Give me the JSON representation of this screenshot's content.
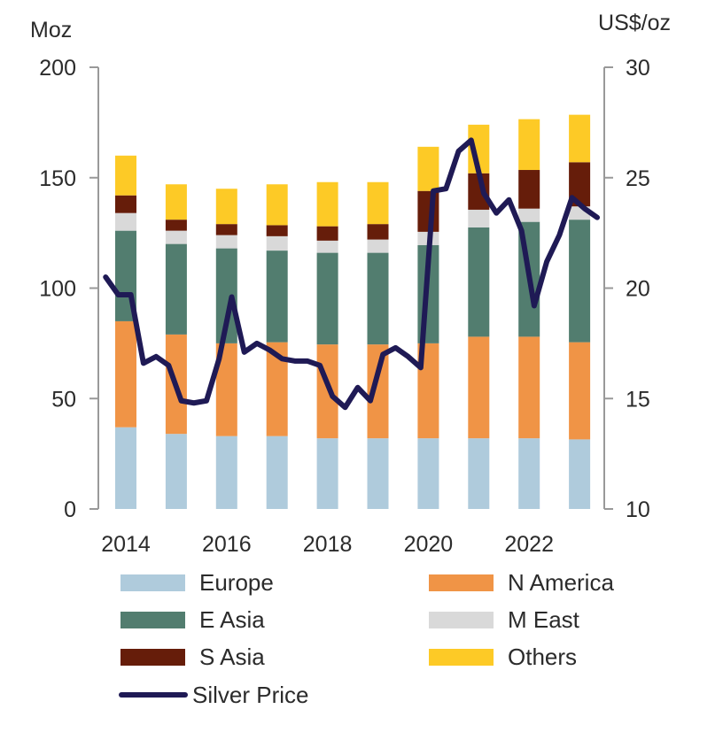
{
  "chart_data": {
    "type": "bar",
    "stacked": true,
    "categories": [
      2014,
      2015,
      2016,
      2017,
      2018,
      2019,
      2020,
      2021,
      2022,
      2023
    ],
    "x_tick_labels": [
      "2014",
      "2016",
      "2018",
      "2020",
      "2022"
    ],
    "y_left": {
      "unit": "Moz",
      "range": [
        0,
        200
      ],
      "ticks": [
        0,
        50,
        100,
        150,
        200
      ]
    },
    "y_right": {
      "unit": "US$/oz",
      "range": [
        10,
        30
      ],
      "ticks": [
        10,
        15,
        20,
        25,
        30
      ]
    },
    "grid": false,
    "legend_position": "bottom",
    "series": [
      {
        "name": "Europe",
        "color": "#afcbdc",
        "values": [
          37,
          34,
          33,
          33,
          32,
          32,
          32,
          32,
          32,
          31.5
        ]
      },
      {
        "name": "N America",
        "color": "#f09446",
        "values": [
          48,
          45,
          42,
          42.5,
          42.5,
          42.5,
          43,
          46,
          46,
          44
        ]
      },
      {
        "name": "E Asia",
        "color": "#527d6f",
        "values": [
          41,
          41,
          43,
          41.5,
          41.5,
          41.5,
          44.5,
          49.5,
          52,
          55.5
        ]
      },
      {
        "name": "M East",
        "color": "#d9d9d9",
        "values": [
          8,
          6,
          6,
          6.5,
          5.5,
          6,
          6,
          8,
          6,
          6
        ]
      },
      {
        "name": "S Asia",
        "color": "#661d0a",
        "values": [
          8,
          5,
          5,
          5,
          6.5,
          7,
          18.5,
          16.5,
          17.5,
          20
        ]
      },
      {
        "name": "Others",
        "color": "#fdca26",
        "values": [
          18,
          16,
          16,
          18.5,
          20,
          19,
          20,
          22,
          23,
          21.5
        ]
      }
    ],
    "line_series": {
      "name": "Silver Price",
      "axis": "right",
      "color": "#1f1a55",
      "x": [
        "2014 Q1",
        "2014 Q2",
        "2014 Q3",
        "2014 Q4",
        "2015 Q1",
        "2015 Q2",
        "2015 Q3",
        "2015 Q4",
        "2016 Q1",
        "2016 Q2",
        "2016 Q3",
        "2016 Q4",
        "2017 Q1",
        "2017 Q2",
        "2017 Q3",
        "2017 Q4",
        "2018 Q1",
        "2018 Q2",
        "2018 Q3",
        "2018 Q4",
        "2019 Q1",
        "2019 Q2",
        "2019 Q3",
        "2019 Q4",
        "2020 Q1",
        "2020 Q2",
        "2020 Q3",
        "2020 Q4",
        "2021 Q1",
        "2021 Q2",
        "2021 Q3",
        "2021 Q4",
        "2022 Q1",
        "2022 Q2",
        "2022 Q3",
        "2022 Q4",
        "2023 Q1",
        "2023 Q2",
        "2023 Q3",
        "2023 Q4"
      ],
      "values": [
        20.5,
        19.7,
        19.7,
        16.6,
        16.9,
        16.5,
        14.9,
        14.8,
        14.9,
        16.8,
        19.6,
        17.1,
        17.5,
        17.2,
        16.8,
        16.7,
        16.7,
        16.5,
        15.1,
        14.6,
        15.5,
        14.9,
        17.0,
        17.3,
        16.9,
        16.4,
        24.4,
        24.5,
        26.2,
        26.7,
        24.3,
        23.4,
        24.0,
        22.6,
        19.2,
        21.2,
        22.4,
        24.1,
        23.6,
        23.2
      ]
    }
  }
}
